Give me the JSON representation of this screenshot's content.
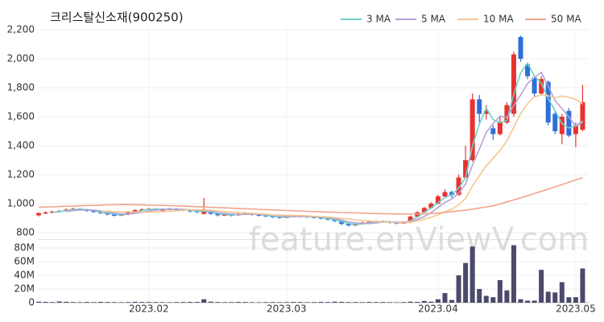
{
  "chart_data": {
    "type": "candlestick",
    "title": "크리스탈신소재(900250)",
    "watermark": "feature.enViewV.com",
    "legend": "top-right",
    "grid": true,
    "up_color": "#e8322f",
    "down_color": "#2d6fd8",
    "categories": [
      null,
      null,
      null,
      null,
      null,
      null,
      null,
      null,
      null,
      null,
      null,
      null,
      null,
      null,
      null,
      null,
      "2023.02",
      null,
      null,
      null,
      null,
      null,
      null,
      null,
      null,
      null,
      null,
      null,
      null,
      null,
      null,
      null,
      null,
      null,
      null,
      null,
      "2023.03",
      null,
      null,
      null,
      null,
      null,
      null,
      null,
      null,
      null,
      null,
      null,
      null,
      null,
      null,
      null,
      null,
      null,
      null,
      null,
      null,
      null,
      "2023.04",
      null,
      null,
      null,
      null,
      null,
      null,
      null,
      null,
      null,
      null,
      null,
      null,
      null,
      null,
      null,
      null,
      null,
      null,
      null,
      "2023.05",
      null
    ],
    "ohlc": [
      [
        920,
        942,
        912,
        935
      ],
      [
        935,
        948,
        928,
        940
      ],
      [
        940,
        952,
        934,
        945
      ],
      [
        945,
        958,
        940,
        950
      ],
      [
        950,
        968,
        945,
        960
      ],
      [
        960,
        972,
        952,
        965
      ],
      [
        965,
        970,
        952,
        960
      ],
      [
        960,
        964,
        944,
        950
      ],
      [
        950,
        955,
        938,
        945
      ],
      [
        945,
        950,
        928,
        935
      ],
      [
        935,
        940,
        918,
        925
      ],
      [
        925,
        930,
        912,
        920
      ],
      [
        920,
        932,
        914,
        925
      ],
      [
        925,
        948,
        920,
        940
      ],
      [
        940,
        962,
        935,
        955
      ],
      [
        955,
        968,
        950,
        960
      ],
      [
        960,
        972,
        955,
        965
      ],
      [
        965,
        970,
        952,
        960
      ],
      [
        960,
        968,
        952,
        960
      ],
      [
        960,
        972,
        955,
        965
      ],
      [
        965,
        970,
        952,
        960
      ],
      [
        960,
        964,
        948,
        955
      ],
      [
        955,
        962,
        940,
        950
      ],
      [
        950,
        956,
        935,
        945
      ],
      [
        930,
        1040,
        925,
        950
      ],
      [
        950,
        955,
        922,
        930
      ],
      [
        930,
        935,
        912,
        920
      ],
      [
        920,
        932,
        915,
        925
      ],
      [
        925,
        930,
        912,
        920
      ],
      [
        920,
        938,
        915,
        930
      ],
      [
        930,
        942,
        925,
        935
      ],
      [
        935,
        938,
        918,
        925
      ],
      [
        925,
        930,
        912,
        920
      ],
      [
        920,
        925,
        908,
        915
      ],
      [
        915,
        920,
        902,
        910
      ],
      [
        910,
        914,
        898,
        905
      ],
      [
        905,
        916,
        900,
        910
      ],
      [
        910,
        922,
        905,
        915
      ],
      [
        915,
        922,
        908,
        915
      ],
      [
        915,
        918,
        902,
        910
      ],
      [
        910,
        914,
        898,
        905
      ],
      [
        905,
        910,
        892,
        900
      ],
      [
        900,
        905,
        882,
        890
      ],
      [
        890,
        895,
        872,
        880
      ],
      [
        880,
        885,
        852,
        860
      ],
      [
        860,
        866,
        842,
        850
      ],
      [
        850,
        866,
        845,
        860
      ],
      [
        860,
        876,
        855,
        870
      ],
      [
        870,
        882,
        865,
        875
      ],
      [
        875,
        886,
        870,
        880
      ],
      [
        880,
        884,
        868,
        875
      ],
      [
        875,
        880,
        862,
        870
      ],
      [
        870,
        874,
        858,
        865
      ],
      [
        865,
        878,
        860,
        870
      ],
      [
        870,
        918,
        865,
        910
      ],
      [
        910,
        948,
        905,
        940
      ],
      [
        940,
        978,
        935,
        970
      ],
      [
        970,
        1010,
        965,
        1000
      ],
      [
        1000,
        1062,
        995,
        1050
      ],
      [
        1050,
        1100,
        1040,
        1080
      ],
      [
        1080,
        1090,
        1040,
        1060
      ],
      [
        1060,
        1200,
        1055,
        1180
      ],
      [
        1180,
        1400,
        1170,
        1300
      ],
      [
        1300,
        1760,
        1290,
        1720
      ],
      [
        1720,
        1750,
        1560,
        1620
      ],
      [
        1620,
        1680,
        1580,
        1640
      ],
      [
        1520,
        1540,
        1440,
        1480
      ],
      [
        1480,
        1600,
        1470,
        1560
      ],
      [
        1560,
        1700,
        1550,
        1680
      ],
      [
        1620,
        2050,
        1600,
        2030
      ],
      [
        2150,
        2160,
        1980,
        2000
      ],
      [
        1960,
        1970,
        1860,
        1880
      ],
      [
        1870,
        1880,
        1740,
        1760
      ],
      [
        1760,
        1880,
        1750,
        1860
      ],
      [
        1840,
        1850,
        1540,
        1560
      ],
      [
        1620,
        1640,
        1480,
        1500
      ],
      [
        1480,
        1620,
        1410,
        1600
      ],
      [
        1640,
        1660,
        1460,
        1470
      ],
      [
        1480,
        1560,
        1390,
        1540
      ],
      [
        1510,
        1820,
        1500,
        1700
      ]
    ],
    "ylim": [
      770,
      2220
    ],
    "yticks": [
      800,
      {
        "value": 1000,
        "label": "1,000"
      },
      {
        "value": 1200,
        "label": "1,200"
      },
      {
        "value": 1400,
        "label": "1,400"
      },
      {
        "value": 1600,
        "label": "1,600"
      },
      {
        "value": 1800,
        "label": "1,800"
      },
      {
        "value": 2000,
        "label": "2,000"
      },
      {
        "value": 2200,
        "label": "2,200"
      }
    ],
    "series": [
      {
        "name": "3 MA",
        "color": "#6fd0c9",
        "values": [
          null,
          null,
          940,
          945,
          952,
          958,
          962,
          958,
          952,
          943,
          935,
          927,
          923,
          928,
          940,
          952,
          960,
          962,
          962,
          962,
          962,
          960,
          955,
          950,
          948,
          942,
          933,
          925,
          922,
          925,
          928,
          930,
          927,
          920,
          915,
          910,
          908,
          910,
          913,
          913,
          910,
          905,
          898,
          890,
          877,
          863,
          857,
          860,
          868,
          875,
          877,
          875,
          870,
          868,
          882,
          907,
          940,
          970,
          1007,
          1043,
          1063,
          1107,
          1180,
          1400,
          1547,
          1660,
          1580,
          1560,
          1573,
          1757,
          1903,
          1970,
          1880,
          1833,
          1727,
          1640,
          1553,
          1523,
          1537,
          1570
        ]
      },
      {
        "name": "5 MA",
        "color": "#b4a2d4",
        "values": [
          null,
          null,
          null,
          null,
          946,
          952,
          956,
          957,
          956,
          951,
          943,
          935,
          930,
          929,
          933,
          940,
          949,
          956,
          960,
          962,
          962,
          960,
          958,
          955,
          952,
          946,
          939,
          934,
          929,
          925,
          926,
          927,
          926,
          925,
          921,
          915,
          912,
          911,
          911,
          911,
          911,
          909,
          904,
          897,
          887,
          874,
          868,
          864,
          863,
          867,
          872,
          874,
          873,
          872,
          878,
          891,
          911,
          938,
          974,
          1008,
          1032,
          1074,
          1134,
          1268,
          1376,
          1492,
          1552,
          1604,
          1596,
          1678,
          1750,
          1830,
          1870,
          1906,
          1812,
          1712,
          1656,
          1598,
          1534,
          1562
        ]
      },
      {
        "name": "10 MA",
        "color": "#f5c690",
        "values": [
          null,
          null,
          null,
          null,
          null,
          null,
          null,
          null,
          null,
          949,
          948,
          946,
          944,
          943,
          942,
          942,
          942,
          943,
          945,
          948,
          951,
          955,
          957,
          958,
          957,
          954,
          950,
          946,
          942,
          939,
          936,
          933,
          930,
          927,
          923,
          921,
          920,
          919,
          918,
          916,
          913,
          911,
          908,
          904,
          899,
          894,
          889,
          884,
          880,
          877,
          874,
          871,
          869,
          868,
          873,
          882,
          893,
          906,
          923,
          943,
          962,
          993,
          1036,
          1121,
          1192,
          1262,
          1313,
          1369,
          1432,
          1527,
          1621,
          1691,
          1737,
          1751,
          1745,
          1731,
          1743,
          1734,
          1720,
          1687
        ]
      },
      {
        "name": "50 MA",
        "color": "#f2a48e",
        "values": [
          975,
          977,
          978,
          980,
          982,
          983,
          985,
          987,
          988,
          990,
          992,
          993,
          995,
          994,
          993,
          992,
          990,
          989,
          988,
          986,
          985,
          983,
          981,
          979,
          977,
          975,
          973,
          971,
          969,
          967,
          965,
          963,
          961,
          959,
          957,
          955,
          953,
          951,
          949,
          947,
          945,
          944,
          942,
          941,
          939,
          938,
          936,
          935,
          933,
          932,
          930,
          930,
          929,
          929,
          928,
          928,
          930,
          932,
          935,
          940,
          945,
          950,
          955,
          962,
          970,
          978,
          985,
          998,
          1012,
          1026,
          1040,
          1055,
          1070,
          1085,
          1100,
          1116,
          1132,
          1148,
          1164,
          1180
        ]
      }
    ],
    "volume": {
      "color": "#4b4a6b",
      "ylim": [
        0,
        90000000
      ],
      "yticks": [
        0,
        {
          "value": 20000000,
          "label": "20M"
        },
        {
          "value": 40000000,
          "label": "40M"
        },
        {
          "value": 60000000,
          "label": "60M"
        },
        {
          "value": 80000000,
          "label": "80M"
        }
      ],
      "values": [
        1500000,
        1200000,
        900000,
        1800000,
        1300000,
        1000000,
        800000,
        1100000,
        900000,
        1200000,
        1000000,
        800000,
        700000,
        900000,
        1300000,
        1100000,
        1000000,
        900000,
        800000,
        700000,
        900000,
        1000000,
        1200000,
        1100000,
        5000000,
        1500000,
        1000000,
        800000,
        900000,
        1100000,
        1000000,
        800000,
        700000,
        900000,
        1000000,
        800000,
        900000,
        1100000,
        1000000,
        800000,
        900000,
        1200000,
        1000000,
        1500000,
        1300000,
        900000,
        1000000,
        800000,
        1100000,
        900000,
        1000000,
        800000,
        700000,
        900000,
        1500000,
        1200000,
        2500000,
        1500000,
        5000000,
        14000000,
        4000000,
        40000000,
        58000000,
        82000000,
        20000000,
        10000000,
        8000000,
        33000000,
        18000000,
        84000000,
        5000000,
        3000000,
        3000000,
        48000000,
        16000000,
        15000000,
        30000000,
        8000000,
        8000000,
        50000000
      ]
    }
  }
}
